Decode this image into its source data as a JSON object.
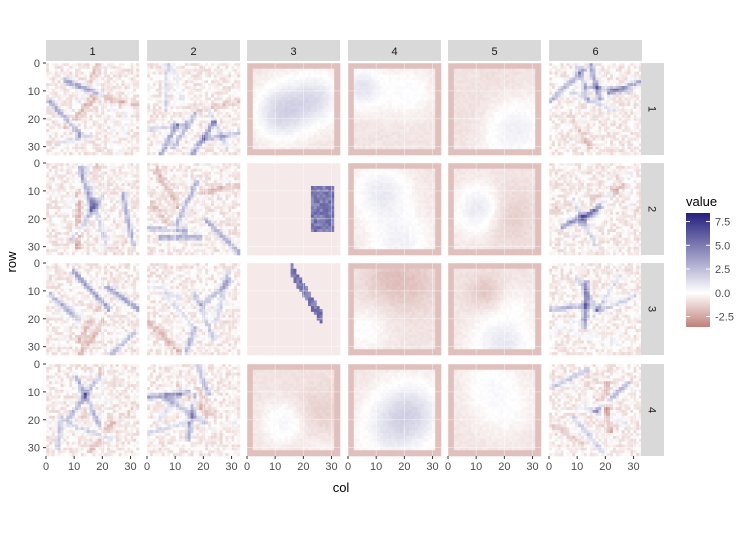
{
  "chart_data": {
    "type": "heatmap",
    "title": "",
    "xlabel": "col",
    "ylabel": "row",
    "xlim": [
      0,
      33
    ],
    "ylim": [
      33,
      0
    ],
    "x_ticks": [
      "0",
      "10",
      "20",
      "30"
    ],
    "y_ticks": [
      "0",
      "10",
      "20",
      "30"
    ],
    "x_tick_values": [
      0,
      10,
      20,
      30
    ],
    "y_tick_values": [
      0,
      10,
      20,
      30
    ],
    "facet_cols": [
      "1",
      "2",
      "3",
      "4",
      "5",
      "6"
    ],
    "facet_rows": [
      "1",
      "2",
      "3",
      "4"
    ],
    "grid": true,
    "legend": {
      "title": "value",
      "labels": [
        "7.5",
        "5.0",
        "2.5",
        "0.0",
        "-2.5"
      ],
      "values": [
        7.5,
        5.0,
        2.5,
        0.0,
        -2.5
      ],
      "range": [
        -3.6,
        8.4
      ],
      "placement": "right",
      "low_color": "#c0807a",
      "mid_color": "#ffffff",
      "high_color": "#24207d"
    },
    "panel_background": "#ebebeb",
    "strip_background": "#d9d9d9"
  }
}
